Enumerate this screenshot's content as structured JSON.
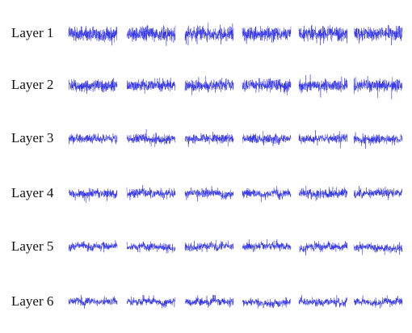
{
  "rows": [
    {
      "label": "Layer 1"
    },
    {
      "label": "Layer 2"
    },
    {
      "label": "Layer 3"
    },
    {
      "label": "Layer 4"
    },
    {
      "label": "Layer 5"
    },
    {
      "label": "Layer 6"
    }
  ]
}
